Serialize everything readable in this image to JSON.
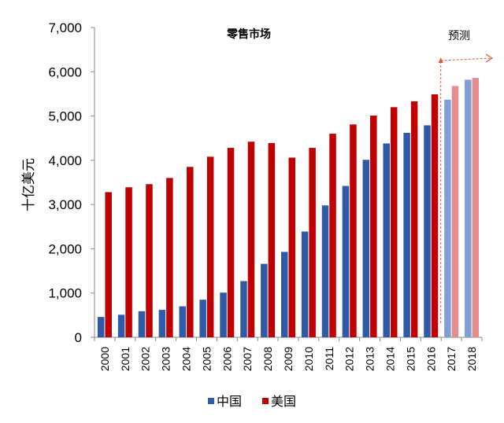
{
  "chart_data": {
    "type": "bar",
    "title": "零售市场",
    "ylabel": "十亿美元",
    "xlabel": "",
    "ylim": [
      0,
      7000
    ],
    "yticks": [
      "0",
      "1,000",
      "2,000",
      "3,000",
      "4,000",
      "5,000",
      "6,000",
      "7,000"
    ],
    "ytick_values": [
      0,
      1000,
      2000,
      3000,
      4000,
      5000,
      6000,
      7000
    ],
    "categories": [
      "2000",
      "2001",
      "2002",
      "2003",
      "2004",
      "2005",
      "2006",
      "2007",
      "2008",
      "2009",
      "2010",
      "2011",
      "2012",
      "2013",
      "2014",
      "2015",
      "2016",
      "2017",
      "2018"
    ],
    "series": [
      {
        "name": "中国",
        "color": "#2f5aa8",
        "forecast_color": "#7f9fd6",
        "values": [
          460,
          510,
          590,
          620,
          700,
          850,
          1010,
          1270,
          1660,
          1930,
          2390,
          2980,
          3420,
          4010,
          4380,
          4620,
          4790,
          5370,
          5820
        ]
      },
      {
        "name": "美国",
        "color": "#c00000",
        "forecast_color": "#e38d8d",
        "values": [
          3280,
          3390,
          3460,
          3600,
          3850,
          4080,
          4280,
          4420,
          4390,
          4060,
          4280,
          4600,
          4810,
          5010,
          5200,
          5330,
          5490,
          5680,
          5860
        ]
      }
    ],
    "forecast_start_index": 17,
    "forecast_label": "预测",
    "grid": false,
    "legend": "bottom"
  }
}
